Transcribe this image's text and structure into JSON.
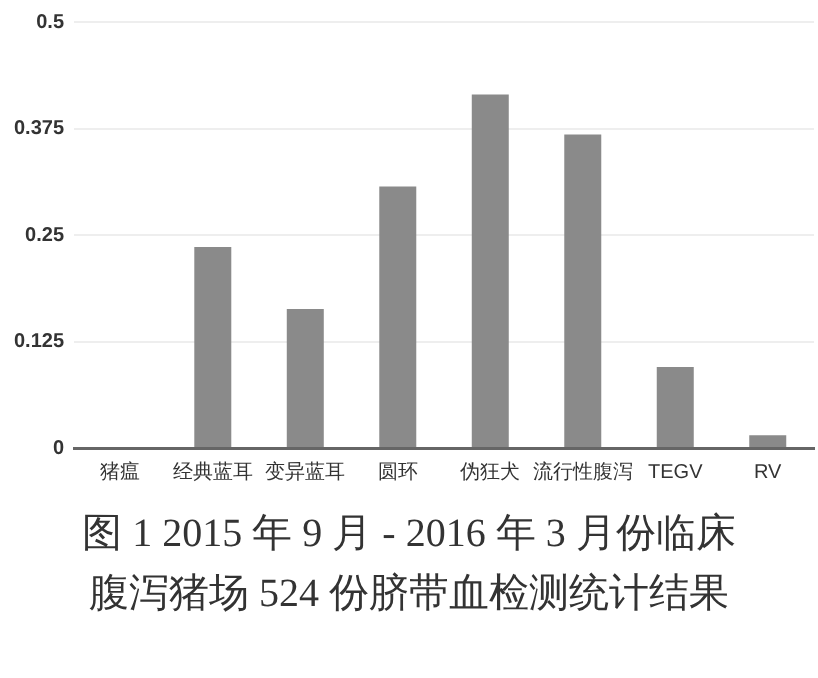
{
  "chart_data": {
    "type": "bar",
    "title": "图 1 2015 年 9 月 - 2016 年 3 月份临床腹泻猪场 524 份脐带血检测统计结果",
    "categories": [
      "猪瘟",
      "经典蓝耳",
      "变异蓝耳",
      "圆环",
      "伪狂犬",
      "流行性腹泻",
      "TEGV",
      "RV"
    ],
    "values": [
      0,
      0.236,
      0.163,
      0.307,
      0.415,
      0.368,
      0.095,
      0.015
    ],
    "color": "#8a8a8a",
    "ylim": [
      0,
      0.5
    ],
    "yticks": [
      0,
      0.125,
      0.25,
      0.375,
      0.5
    ],
    "grid": "y"
  }
}
